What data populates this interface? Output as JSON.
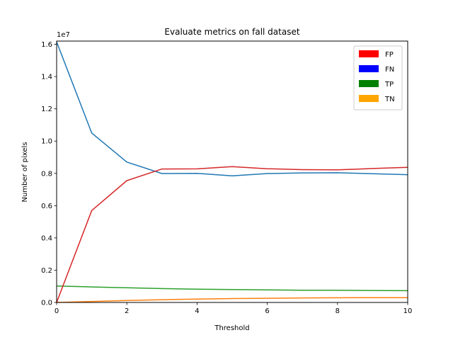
{
  "chart_data": {
    "type": "line",
    "title": "Evaluate metrics on fall dataset",
    "xlabel": "Threshold",
    "ylabel": "Number of pixels",
    "y_offset_label": "1e7",
    "xlim": [
      0,
      10
    ],
    "ylim": [
      0,
      16200000
    ],
    "x_ticks": [
      0,
      2,
      4,
      6,
      8,
      10
    ],
    "x_tick_labels": [
      "0",
      "2",
      "4",
      "6",
      "8",
      "10"
    ],
    "y_ticks": [
      0,
      2000000,
      4000000,
      6000000,
      8000000,
      10000000,
      12000000,
      14000000,
      16000000
    ],
    "y_tick_labels": [
      "0.0",
      "0.2",
      "0.4",
      "0.6",
      "0.8",
      "1.0",
      "1.2",
      "1.4",
      "1.6"
    ],
    "grid": false,
    "legend_position": "top-right",
    "x": [
      0,
      1,
      2,
      3,
      4,
      5,
      6,
      7,
      8,
      9,
      10
    ],
    "series": [
      {
        "name": "FP",
        "legend_color": "#ff0000",
        "line_color": "#d62728",
        "values": [
          0,
          5700000,
          7550000,
          8270000,
          8280000,
          8420000,
          8290000,
          8230000,
          8220000,
          8300000,
          8370000
        ]
      },
      {
        "name": "FN",
        "legend_color": "#0000ff",
        "line_color": "#1f77b4",
        "values": [
          16150000,
          10500000,
          8700000,
          7990000,
          8000000,
          7850000,
          7990000,
          8030000,
          8040000,
          7980000,
          7920000
        ]
      },
      {
        "name": "TP",
        "legend_color": "#008000",
        "line_color": "#2ca02c",
        "values": [
          1020000,
          960000,
          910000,
          860000,
          820000,
          800000,
          780000,
          760000,
          760000,
          740000,
          730000
        ]
      },
      {
        "name": "TN",
        "legend_color": "#ffa500",
        "line_color": "#ff7f0e",
        "values": [
          0,
          60000,
          120000,
          170000,
          210000,
          240000,
          260000,
          280000,
          290000,
          300000,
          300000
        ]
      }
    ]
  }
}
